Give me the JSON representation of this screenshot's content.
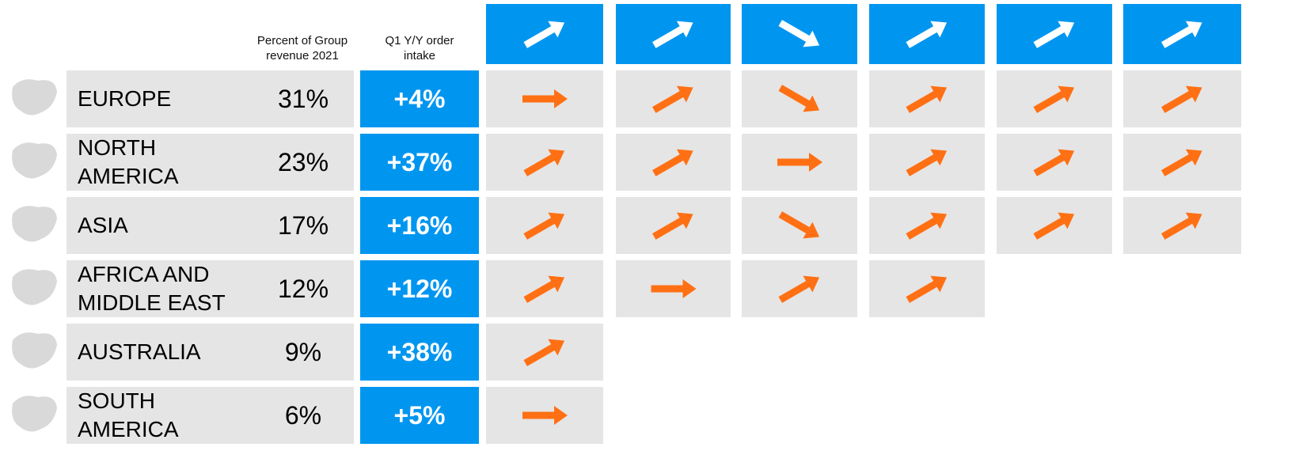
{
  "header": {
    "share_label": "Percent of Group revenue 2021",
    "intake_label": "Q1 Y/Y order intake"
  },
  "rows": [
    {
      "region": "EUROPE",
      "share": "31%",
      "intake": "+4%"
    },
    {
      "region": "NORTH AMERICA",
      "share": "23%",
      "intake": "+37%"
    },
    {
      "region": "ASIA",
      "share": "17%",
      "intake": "+16%"
    },
    {
      "region": "AFRICA AND MIDDLE EAST",
      "share": "12%",
      "intake": "+12%"
    },
    {
      "region": "AUSTRALIA",
      "share": "9%",
      "intake": "+38%"
    },
    {
      "region": "SOUTH AMERICA",
      "share": "6%",
      "intake": "+5%"
    }
  ]
}
